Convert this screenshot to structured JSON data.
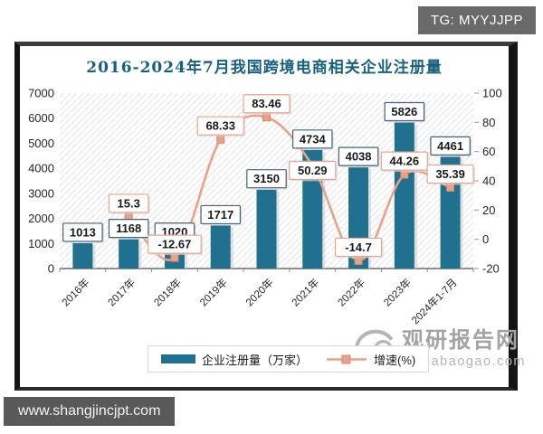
{
  "badges": {
    "tg": "TG: MYYJJPP",
    "site": "www.shangjincjpt.com"
  },
  "watermark": {
    "name": "观研报告网",
    "domain": "chinabaogao.com"
  },
  "chart_data": {
    "type": "bar+line",
    "title": "2016-2024年7月我国跨境电商相关企业注册量",
    "categories": [
      "2016年",
      "2017年",
      "2018年",
      "2019年",
      "2020年",
      "2021年",
      "2022年",
      "2023年",
      "2024年1-7月"
    ],
    "series": [
      {
        "name": "企业注册量（万家）",
        "type": "bar",
        "axis": "left",
        "color": "#20708f",
        "values": [
          1013,
          1168,
          1020,
          1717,
          3150,
          4734,
          4038,
          5826,
          4461
        ]
      },
      {
        "name": "增速(%)",
        "type": "line",
        "axis": "right",
        "color": "#eba189",
        "marker_border": "#d08a6d",
        "values": [
          null,
          15.3,
          -12.67,
          68.33,
          83.46,
          50.29,
          -14.7,
          44.26,
          35.39
        ],
        "label_dy": [
          0,
          0,
          0,
          0,
          0,
          20,
          0,
          0,
          0
        ]
      }
    ],
    "left_axis": {
      "min": 0,
      "max": 7000,
      "step": 1000,
      "ticks": [
        0,
        1000,
        2000,
        3000,
        4000,
        5000,
        6000,
        7000
      ]
    },
    "right_axis": {
      "min": -20,
      "max": 100,
      "step": 20,
      "ticks": [
        -20,
        0,
        20,
        40,
        60,
        80,
        100
      ]
    },
    "legend_position": "bottom",
    "grid": false,
    "plot_background": "diagonal-hatch",
    "colors": {
      "title": "#17617f",
      "bar_label_border": "#44607a",
      "line_label_border": "#e9a58b",
      "axis_line": "#6b6b6b",
      "axis_text": "#262626",
      "hatch": "#e7e7e7"
    }
  }
}
